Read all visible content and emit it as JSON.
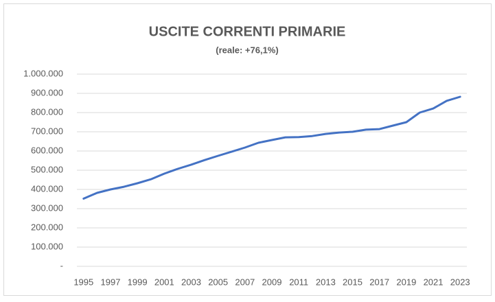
{
  "chart_data": {
    "type": "line",
    "title": "USCITE CORRENTI PRIMARIE",
    "subtitle": "(reale: +76,1%)",
    "categories": [
      "1995",
      null,
      "1997",
      null,
      "1999",
      null,
      "2001",
      null,
      "2003",
      null,
      "2005",
      null,
      "2007",
      null,
      "2009",
      null,
      "2011",
      null,
      "2013",
      null,
      "2015",
      null,
      "2017",
      null,
      "2019",
      null,
      "2021",
      null,
      "2023"
    ],
    "values": [
      352000,
      382000,
      400000,
      414000,
      432000,
      453000,
      482000,
      507000,
      529000,
      553000,
      575000,
      596000,
      618000,
      643000,
      657000,
      671000,
      672000,
      678000,
      689000,
      696000,
      700000,
      711000,
      714000,
      732000,
      750000,
      800000,
      821000,
      861000,
      882000
    ],
    "color": "#4472c4",
    "ylim": [
      0,
      1000000
    ],
    "yticks": [
      {
        "value": 0,
        "label": "-"
      },
      {
        "value": 100000,
        "label": "100.000"
      },
      {
        "value": 200000,
        "label": "200.000"
      },
      {
        "value": 300000,
        "label": "300.000"
      },
      {
        "value": 400000,
        "label": "400.000"
      },
      {
        "value": 500000,
        "label": "500.000"
      },
      {
        "value": 600000,
        "label": "600.000"
      },
      {
        "value": 700000,
        "label": "700.000"
      },
      {
        "value": 800000,
        "label": "800.000"
      },
      {
        "value": 900000,
        "label": "900.000"
      },
      {
        "value": 1000000,
        "label": "1.000.000"
      }
    ],
    "grid": true
  }
}
